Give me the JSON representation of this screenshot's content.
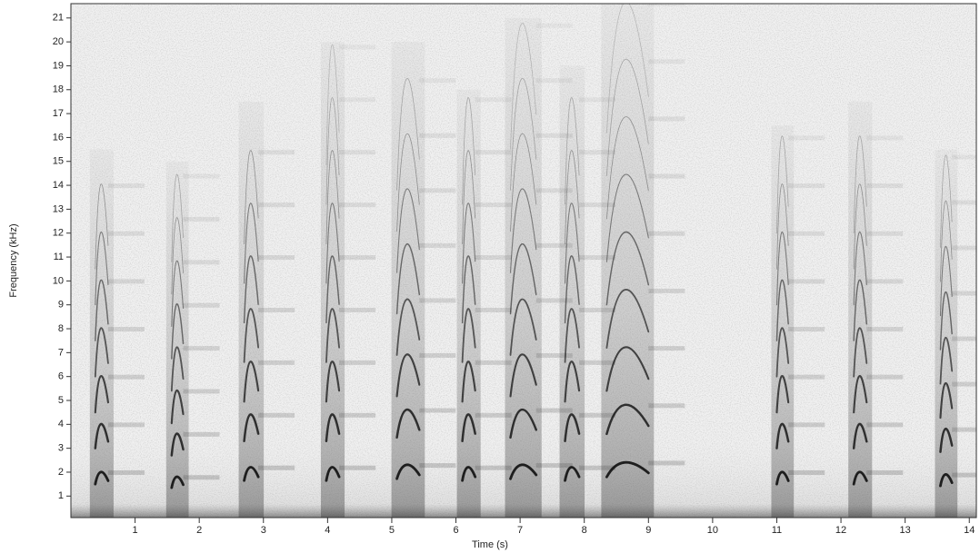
{
  "chart_data": {
    "type": "spectrogram",
    "x_label": "Time (s)",
    "y_label": "Frequency (kHz)",
    "xlim": [
      0,
      14.11
    ],
    "ylim": [
      0.1,
      21.6
    ],
    "xticks": [
      1,
      2,
      3,
      4,
      5,
      6,
      7,
      8,
      9,
      10,
      11,
      12,
      13,
      14
    ],
    "yticks": [
      1,
      2,
      3,
      4,
      5,
      6,
      7,
      8,
      9,
      10,
      11,
      12,
      13,
      14,
      15,
      16,
      17,
      18,
      19,
      20,
      21
    ],
    "calls": {
      "onset": [
        0.38,
        1.57,
        2.7,
        3.98,
        5.08,
        6.1,
        6.85,
        7.7,
        8.35,
        11.0,
        12.2,
        13.55
      ],
      "duration": [
        0.2,
        0.18,
        0.22,
        0.2,
        0.35,
        0.2,
        0.4,
        0.22,
        0.65,
        0.18,
        0.2,
        0.18
      ],
      "f0": [
        2.0,
        1.8,
        2.2,
        2.2,
        2.3,
        2.2,
        2.3,
        2.2,
        2.4,
        2.0,
        2.0,
        1.9
      ],
      "top": [
        15.5,
        15.0,
        17.5,
        20.0,
        20.0,
        18.0,
        21.0,
        19.0,
        21.6,
        16.5,
        17.5,
        15.5
      ]
    }
  }
}
